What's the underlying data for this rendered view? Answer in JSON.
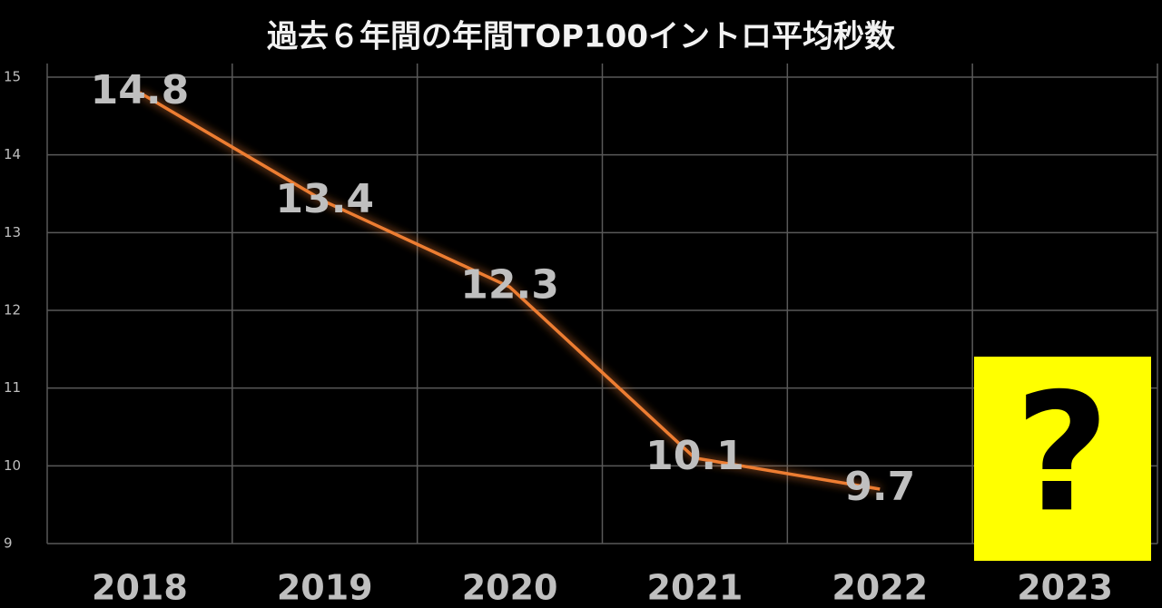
{
  "chart_data": {
    "type": "line",
    "title": "過去６年間の年間TOP100イントロ平均秒数",
    "categories": [
      "2018",
      "2019",
      "2020",
      "2021",
      "2022",
      "2023"
    ],
    "series": [
      {
        "name": "年間TOP100イントロ平均秒数",
        "color": "#ed7d31",
        "values": [
          14.8,
          13.4,
          12.3,
          10.1,
          9.7,
          null
        ]
      }
    ],
    "ylim": [
      9,
      15
    ],
    "yticks": [
      9,
      10,
      11,
      12,
      13,
      14,
      15
    ],
    "grid": true,
    "annotation": {
      "text": "?",
      "color": "#ffff00"
    }
  }
}
